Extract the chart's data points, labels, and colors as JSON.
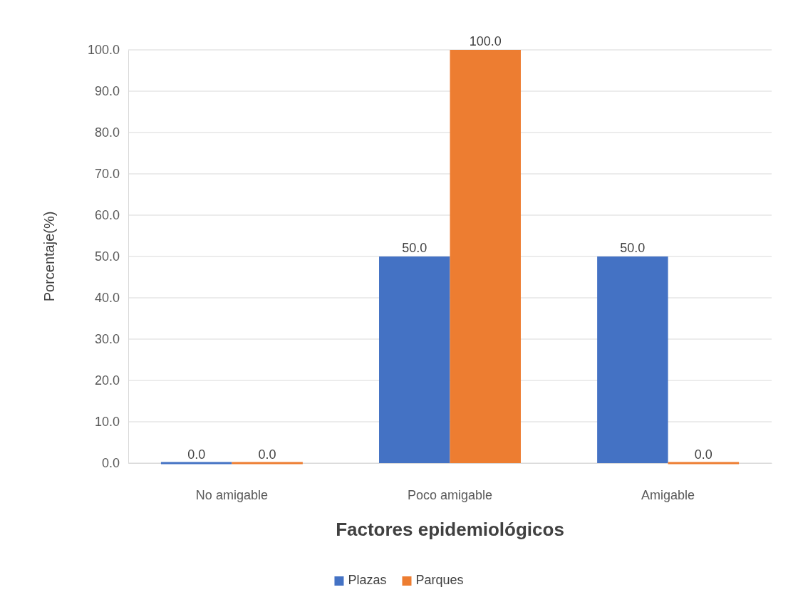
{
  "chart_data": {
    "type": "bar",
    "xlabel": "Factores epidemiológicos",
    "ylabel": "Porcentaje(%)",
    "categories": [
      "No amigable",
      "Poco amigable",
      "Amigable"
    ],
    "series": [
      {
        "name": "Plazas",
        "color": "#4472c4",
        "values": [
          0,
          50,
          50
        ],
        "value_labels": [
          "0.0",
          "50.0",
          "50.0"
        ]
      },
      {
        "name": "Parques",
        "color": "#ed7d31",
        "values": [
          0,
          100,
          0
        ],
        "value_labels": [
          "0.0",
          "100.0",
          "0.0"
        ]
      }
    ],
    "ylim": [
      0,
      100
    ],
    "yticks": [
      {
        "value": 0,
        "label": "0.0"
      },
      {
        "value": 10,
        "label": "10.0"
      },
      {
        "value": 20,
        "label": "20.0"
      },
      {
        "value": 30,
        "label": "30.0"
      },
      {
        "value": 40,
        "label": "40.0"
      },
      {
        "value": 50,
        "label": "50.0"
      },
      {
        "value": 60,
        "label": "60.0"
      },
      {
        "value": 70,
        "label": "70.0"
      },
      {
        "value": 80,
        "label": "80.0"
      },
      {
        "value": 90,
        "label": "90.0"
      },
      {
        "value": 100,
        "label": "100.0"
      }
    ],
    "grid": "y",
    "legend": "bottom"
  }
}
